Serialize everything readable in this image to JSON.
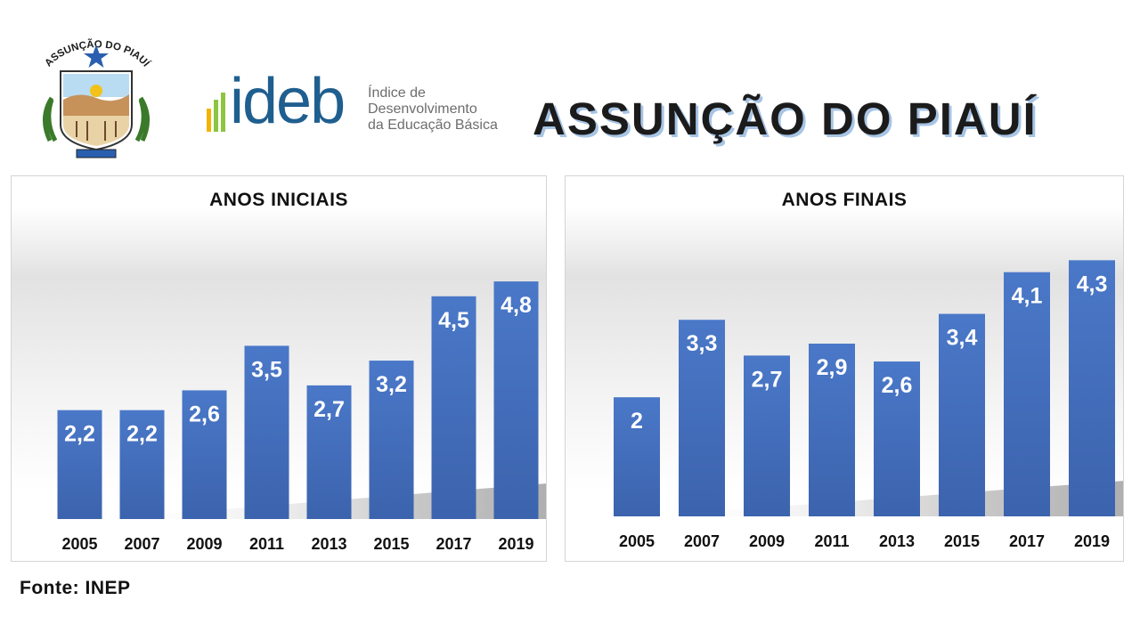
{
  "header": {
    "crest_text": "ASSUNÇÃO DO PIAUÍ",
    "logo_word": "ideb",
    "logo_description": [
      "Índice de",
      "Desenvolvimento",
      "da Educação Básica"
    ],
    "title": "ASSUNÇÃO DO PIAUÍ",
    "colors": {
      "logo_blue": "#1f5f8f",
      "logo_green": "#8cc63f",
      "logo_yellow": "#f3b300",
      "title_shadow": "#a7c4e4"
    }
  },
  "chart_data": [
    {
      "type": "bar",
      "title": "ANOS INICIAIS",
      "categories": [
        "2005",
        "2007",
        "2009",
        "2011",
        "2013",
        "2015",
        "2017",
        "2019"
      ],
      "values": [
        2.2,
        2.2,
        2.6,
        3.5,
        2.7,
        3.2,
        4.5,
        4.8
      ],
      "value_labels": [
        "2,2",
        "2,2",
        "2,6",
        "3,5",
        "2,7",
        "3,2",
        "4,5",
        "4,8"
      ],
      "xlabel": "",
      "ylabel": "",
      "ylim": [
        0,
        5.7
      ],
      "grid": false,
      "legend": "none",
      "bar_color": "#4472c4"
    },
    {
      "type": "bar",
      "title": "ANOS FINAIS",
      "categories": [
        "2005",
        "2007",
        "2009",
        "2011",
        "2013",
        "2015",
        "2017",
        "2019"
      ],
      "values": [
        2,
        3.3,
        2.7,
        2.9,
        2.6,
        3.4,
        4.1,
        4.3
      ],
      "value_labels": [
        "2",
        "3,3",
        "2,7",
        "2,9",
        "2,6",
        "3,4",
        "4,1",
        "4,3"
      ],
      "xlabel": "",
      "ylabel": "",
      "ylim": [
        0,
        5.7
      ],
      "grid": false,
      "legend": "none",
      "bar_color": "#4472c4"
    }
  ],
  "footer": {
    "source": "Fonte: INEP"
  }
}
